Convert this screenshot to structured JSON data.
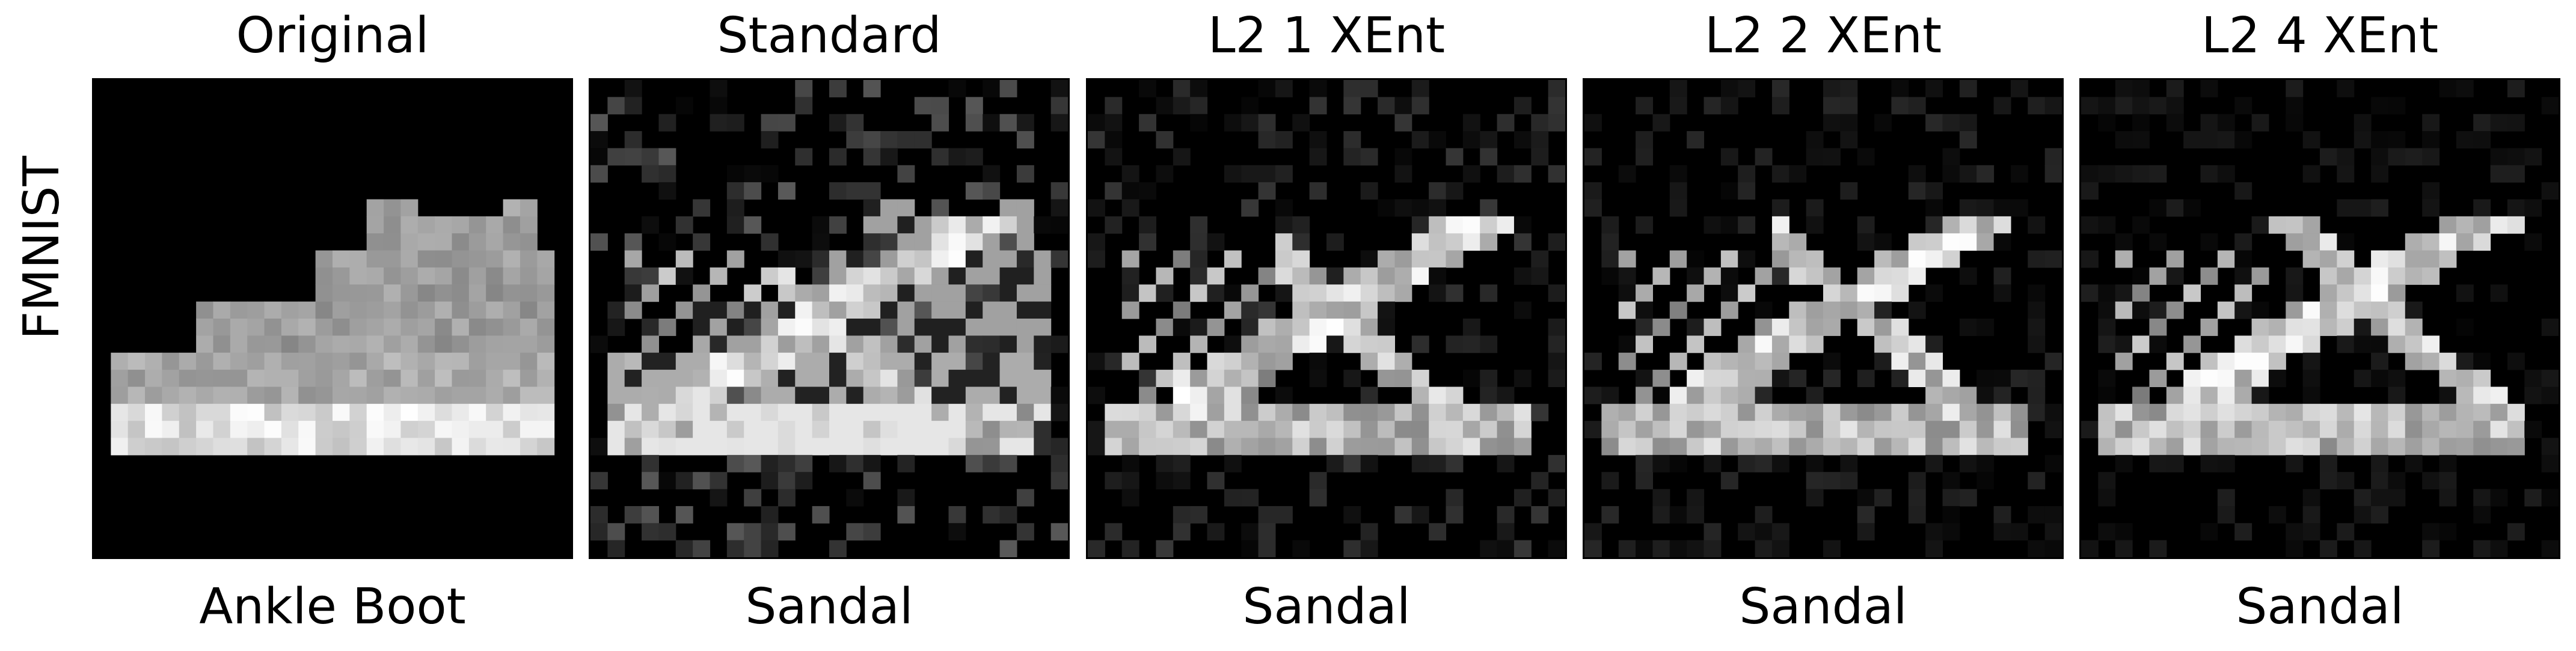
{
  "row_label": "FMNIST",
  "panels": [
    {
      "title": "Original",
      "caption": "Ankle Boot"
    },
    {
      "title": "Standard",
      "caption": "Sandal"
    },
    {
      "title": "L2 1 XEnt",
      "caption": "Sandal"
    },
    {
      "title": "L2 2 XEnt",
      "caption": "Sandal"
    },
    {
      "title": "L2 4 XEnt",
      "caption": "Sandal"
    }
  ],
  "colors": {
    "background": "#000000",
    "foreground": "#ffffff"
  }
}
